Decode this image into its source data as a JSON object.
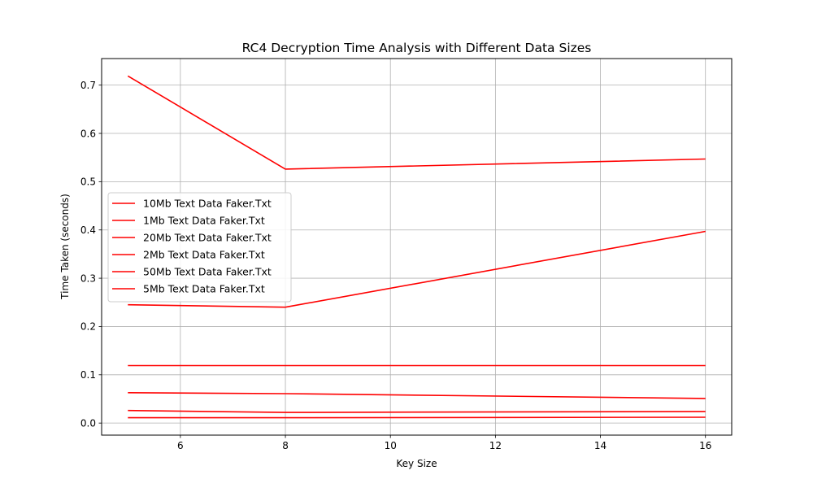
{
  "chart_data": {
    "type": "line",
    "title": "RC4 Decryption Time Analysis with Different Data Sizes",
    "xlabel": "Key Size",
    "ylabel": "Time Taken (seconds)",
    "x": [
      5,
      8,
      16
    ],
    "xlim": [
      4.5,
      16.5
    ],
    "ylim": [
      -0.025,
      0.755
    ],
    "xticks": [
      6,
      8,
      10,
      12,
      14,
      16
    ],
    "yticks": [
      0.0,
      0.1,
      0.2,
      0.3,
      0.4,
      0.5,
      0.6,
      0.7
    ],
    "ytick_labels": [
      "0.0",
      "0.1",
      "0.2",
      "0.3",
      "0.4",
      "0.5",
      "0.6",
      "0.7"
    ],
    "grid": true,
    "legend_position": "center-left",
    "series": [
      {
        "name": "10Mb Text Data Faker.Txt",
        "values": [
          0.119,
          0.119,
          0.119
        ],
        "color": "#ff0000"
      },
      {
        "name": "1Mb Text Data Faker.Txt",
        "values": [
          0.011,
          0.011,
          0.012
        ],
        "color": "#ff0000"
      },
      {
        "name": "20Mb Text Data Faker.Txt",
        "values": [
          0.245,
          0.24,
          0.397
        ],
        "color": "#ff0000"
      },
      {
        "name": "2Mb Text Data Faker.Txt",
        "values": [
          0.026,
          0.022,
          0.024
        ],
        "color": "#ff0000"
      },
      {
        "name": "50Mb Text Data Faker.Txt",
        "values": [
          0.719,
          0.526,
          0.547
        ],
        "color": "#ff0000"
      },
      {
        "name": "5Mb Text Data Faker.Txt",
        "values": [
          0.063,
          0.061,
          0.051
        ],
        "color": "#ff0000"
      }
    ]
  }
}
